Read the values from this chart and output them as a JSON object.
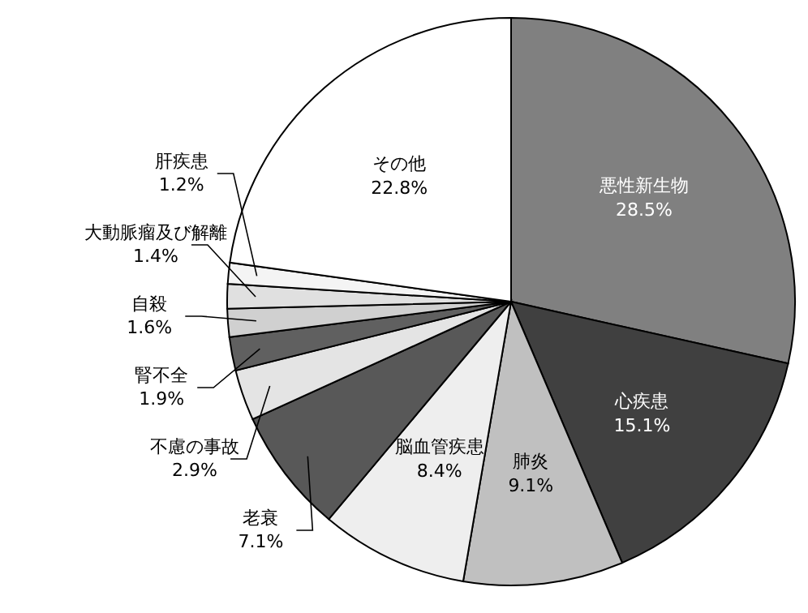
{
  "chart_data": {
    "type": "pie",
    "categories": [
      "悪性新生物",
      "心疾患",
      "肺炎",
      "脳血管疾患",
      "老衰",
      "不慮の事故",
      "腎不全",
      "自殺",
      "大動脈瘤及び解離",
      "肝疾患",
      "その他"
    ],
    "values": [
      28.5,
      15.1,
      9.1,
      8.4,
      7.1,
      2.9,
      1.9,
      1.6,
      1.4,
      1.2,
      22.8
    ],
    "colors": [
      "#808080",
      "#404040",
      "#c0c0c0",
      "#eeeeee",
      "#585858",
      "#e4e4e4",
      "#606060",
      "#d0d0d0",
      "#e0e0e0",
      "#f4f4f4",
      "#ffffff"
    ],
    "value_labels": [
      "28.5%",
      "15.1%",
      "9.1%",
      "8.4%",
      "7.1%",
      "2.9%",
      "1.9%",
      "1.6%",
      "1.4%",
      "1.2%",
      "22.8%"
    ]
  }
}
